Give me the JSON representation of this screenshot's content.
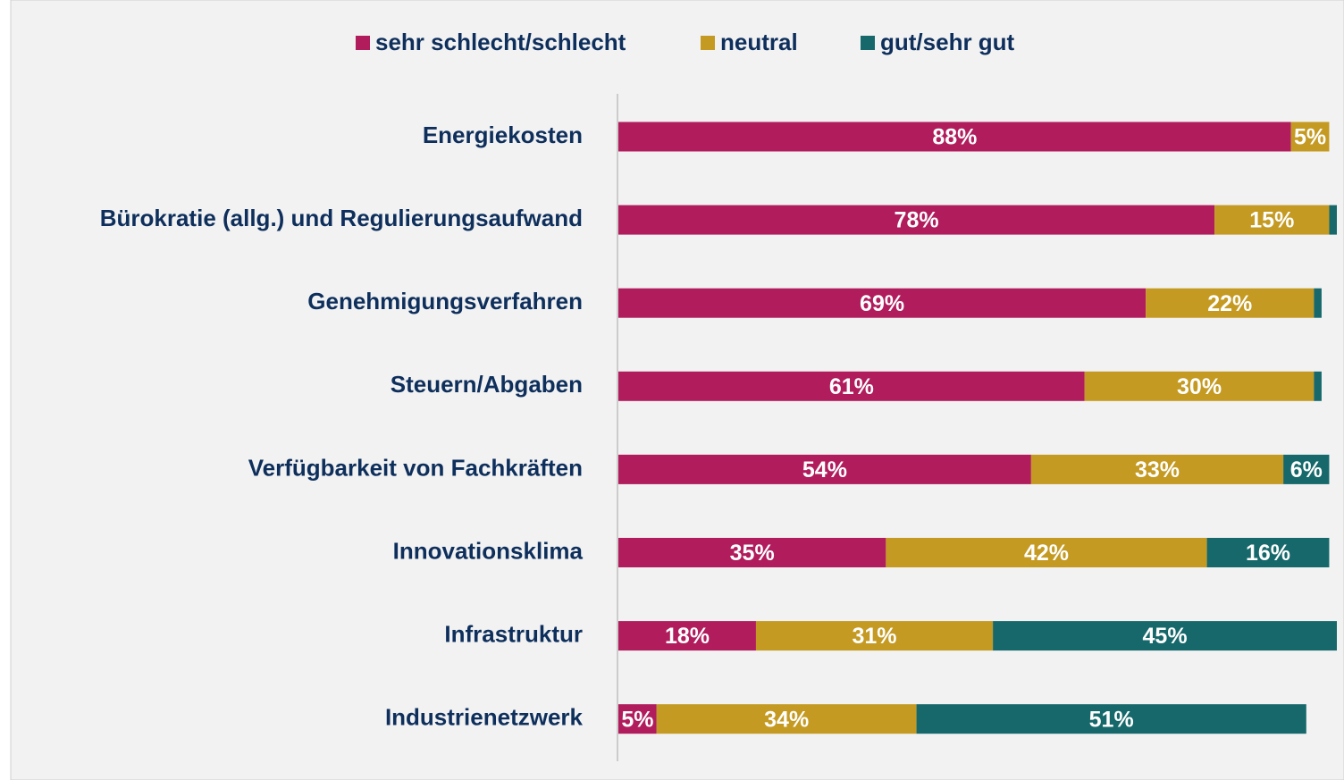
{
  "chart_data": {
    "type": "stacked_barh",
    "categories": [
      "Energiekosten",
      "Bürokratie (allg.) und Regulierungsaufwand",
      "Genehmigungsverfahren",
      "Steuern/Abgaben",
      "Verfügbarkeit von Fachkräften",
      "Innovationsklima",
      "Infrastruktur",
      "Industrienetzwerk"
    ],
    "series": [
      {
        "name": "sehr schlecht/schlecht",
        "color": "#b01c5c",
        "values": [
          88,
          78,
          69,
          61,
          54,
          35,
          18,
          5
        ],
        "value_labels": [
          "88%",
          "78%",
          "69%",
          "61%",
          "54%",
          "35%",
          "18%",
          "5%"
        ]
      },
      {
        "name": "neutral",
        "color": "#c49a22",
        "values": [
          5,
          15,
          22,
          30,
          33,
          42,
          31,
          34
        ],
        "value_labels": [
          "5%",
          "15%",
          "22%",
          "30%",
          "33%",
          "42%",
          "31%",
          "34%"
        ]
      },
      {
        "name": "gut/sehr gut",
        "color": "#16686b",
        "values": [
          0,
          1,
          1,
          1,
          6,
          16,
          45,
          51
        ],
        "value_labels": [
          null,
          null,
          null,
          null,
          "6%",
          "16%",
          "45%",
          "51%"
        ]
      }
    ],
    "xlim": [
      0,
      94
    ],
    "legend": "top"
  }
}
